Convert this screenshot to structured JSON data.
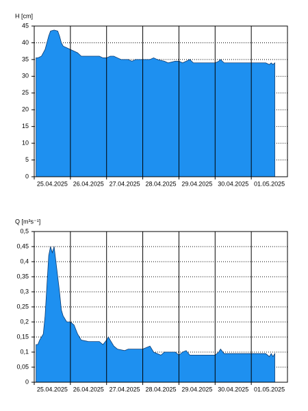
{
  "chart_data": [
    {
      "type": "area",
      "ylabel": "H [cm]",
      "color": "#1e90f0",
      "grid": true,
      "xlim": [
        0,
        7
      ],
      "xticks": [
        {
          "value": 0,
          "label": "25.04.2025"
        },
        {
          "value": 1,
          "label": "26.04.2025"
        },
        {
          "value": 2,
          "label": "27.04.2025"
        },
        {
          "value": 3,
          "label": "28.04.2025"
        },
        {
          "value": 4,
          "label": "29.04.2025"
        },
        {
          "value": 5,
          "label": "30.04.2025"
        },
        {
          "value": 6,
          "label": "01.05.2025"
        }
      ],
      "ylim": [
        0,
        45
      ],
      "yticks": [
        0,
        5,
        10,
        15,
        20,
        25,
        30,
        35,
        40,
        45
      ],
      "x": [
        0.05,
        0.1,
        0.2,
        0.3,
        0.35,
        0.4,
        0.45,
        0.55,
        0.65,
        0.7,
        0.75,
        0.8,
        0.9,
        1.0,
        1.1,
        1.2,
        1.3,
        1.5,
        1.8,
        1.9,
        2.0,
        2.1,
        2.2,
        2.3,
        2.4,
        2.6,
        2.7,
        2.8,
        3.0,
        3.2,
        3.3,
        3.4,
        3.6,
        3.7,
        3.9,
        4.0,
        4.1,
        4.2,
        4.3,
        4.4,
        4.6,
        5.0,
        5.1,
        5.15,
        5.25,
        5.5,
        6.0,
        6.4,
        6.5,
        6.55,
        6.6,
        6.65
      ],
      "values": [
        35.5,
        35.5,
        36,
        38,
        40,
        42,
        43.5,
        43.8,
        43.5,
        42,
        40,
        39,
        38.5,
        38,
        37.5,
        37,
        36,
        36,
        36,
        35.5,
        35.5,
        36,
        36,
        35.5,
        35,
        35,
        34.5,
        35,
        35,
        35,
        35.5,
        35,
        34.5,
        34,
        34.5,
        34.5,
        34,
        34.5,
        35,
        34,
        34,
        34,
        34.5,
        35,
        34,
        34,
        34,
        34,
        33.5,
        34,
        33.5,
        34
      ]
    },
    {
      "type": "area",
      "ylabel": "Q [m³s⁻¹]",
      "color": "#1e90f0",
      "grid": true,
      "xlim": [
        0,
        7
      ],
      "xticks": [
        {
          "value": 0,
          "label": "25.04.2025"
        },
        {
          "value": 1,
          "label": "26.04.2025"
        },
        {
          "value": 2,
          "label": "27.04.2025"
        },
        {
          "value": 3,
          "label": "28.04.2025"
        },
        {
          "value": 4,
          "label": "29.04.2025"
        },
        {
          "value": 5,
          "label": "30.04.2025"
        },
        {
          "value": 6,
          "label": "01.05.2025"
        }
      ],
      "ylim": [
        0,
        0.5
      ],
      "yticks": [
        0,
        {
          "value": 0.05,
          "label": "0,05"
        },
        {
          "value": 0.1,
          "label": "0,1"
        },
        {
          "value": 0.15,
          "label": "0,15"
        },
        {
          "value": 0.2,
          "label": "0,2"
        },
        {
          "value": 0.25,
          "label": "0,25"
        },
        {
          "value": 0.3,
          "label": "0,3"
        },
        {
          "value": 0.35,
          "label": "0,35"
        },
        {
          "value": 0.4,
          "label": "0,4"
        },
        {
          "value": 0.45,
          "label": "0,45"
        },
        {
          "value": 0.5,
          "label": "0,5"
        }
      ],
      "x": [
        0.05,
        0.1,
        0.15,
        0.25,
        0.3,
        0.35,
        0.4,
        0.45,
        0.5,
        0.55,
        0.6,
        0.7,
        0.75,
        0.8,
        0.9,
        1.0,
        1.1,
        1.2,
        1.3,
        1.5,
        1.8,
        1.9,
        2.0,
        2.05,
        2.1,
        2.2,
        2.3,
        2.5,
        2.6,
        3.0,
        3.1,
        3.2,
        3.3,
        3.5,
        3.6,
        3.9,
        4.0,
        4.1,
        4.2,
        4.3,
        4.6,
        5.0,
        5.1,
        5.15,
        5.25,
        5.5,
        6.0,
        6.4,
        6.5,
        6.55,
        6.6,
        6.65
      ],
      "values": [
        0.125,
        0.125,
        0.14,
        0.16,
        0.22,
        0.32,
        0.42,
        0.45,
        0.43,
        0.45,
        0.4,
        0.3,
        0.24,
        0.22,
        0.2,
        0.2,
        0.19,
        0.16,
        0.14,
        0.135,
        0.135,
        0.125,
        0.14,
        0.15,
        0.14,
        0.12,
        0.11,
        0.105,
        0.11,
        0.11,
        0.115,
        0.12,
        0.1,
        0.09,
        0.1,
        0.1,
        0.09,
        0.1,
        0.105,
        0.09,
        0.09,
        0.09,
        0.1,
        0.11,
        0.095,
        0.095,
        0.095,
        0.095,
        0.085,
        0.095,
        0.085,
        0.095
      ]
    }
  ]
}
